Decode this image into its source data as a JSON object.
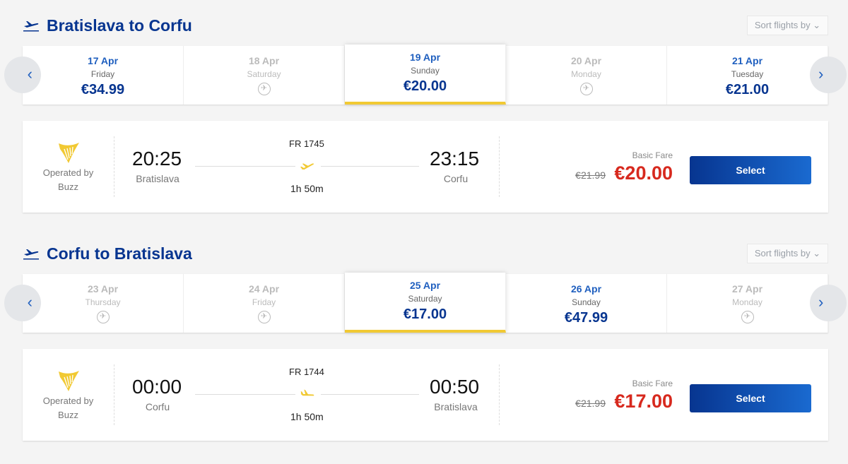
{
  "colors": {
    "brand": "#073590",
    "accent": "#f1c933",
    "price_red": "#d7291e"
  },
  "sections": [
    {
      "title": "Bratislava to Corfu",
      "sort_label": "Sort flights by",
      "dates": [
        {
          "date": "17 Apr",
          "day": "Friday",
          "price": "€34.99",
          "available": true,
          "selected": false
        },
        {
          "date": "18 Apr",
          "day": "Saturday",
          "price": null,
          "available": false,
          "selected": false
        },
        {
          "date": "19 Apr",
          "day": "Sunday",
          "price": "€20.00",
          "available": true,
          "selected": true
        },
        {
          "date": "20 Apr",
          "day": "Monday",
          "price": null,
          "available": false,
          "selected": false
        },
        {
          "date": "21 Apr",
          "day": "Tuesday",
          "price": "€21.00",
          "available": true,
          "selected": false
        }
      ],
      "flight": {
        "operated_by": "Operated by",
        "operator": "Buzz",
        "depart_time": "20:25",
        "depart_city": "Bratislava",
        "flight_number": "FR 1745",
        "duration": "1h 50m",
        "arrive_time": "23:15",
        "arrive_city": "Corfu",
        "fare_label": "Basic Fare",
        "old_price": "€21.99",
        "price": "€20.00",
        "select_label": "Select"
      }
    },
    {
      "title": "Corfu to Bratislava",
      "sort_label": "Sort flights by",
      "dates": [
        {
          "date": "23 Apr",
          "day": "Thursday",
          "price": null,
          "available": false,
          "selected": false
        },
        {
          "date": "24 Apr",
          "day": "Friday",
          "price": null,
          "available": false,
          "selected": false
        },
        {
          "date": "25 Apr",
          "day": "Saturday",
          "price": "€17.00",
          "available": true,
          "selected": true
        },
        {
          "date": "26 Apr",
          "day": "Sunday",
          "price": "€47.99",
          "available": true,
          "selected": false
        },
        {
          "date": "27 Apr",
          "day": "Monday",
          "price": null,
          "available": false,
          "selected": false
        }
      ],
      "flight": {
        "operated_by": "Operated by",
        "operator": "Buzz",
        "depart_time": "00:00",
        "depart_city": "Corfu",
        "flight_number": "FR 1744",
        "duration": "1h 50m",
        "arrive_time": "00:50",
        "arrive_city": "Bratislava",
        "fare_label": "Basic Fare",
        "old_price": "€21.99",
        "price": "€17.00",
        "select_label": "Select"
      }
    }
  ]
}
